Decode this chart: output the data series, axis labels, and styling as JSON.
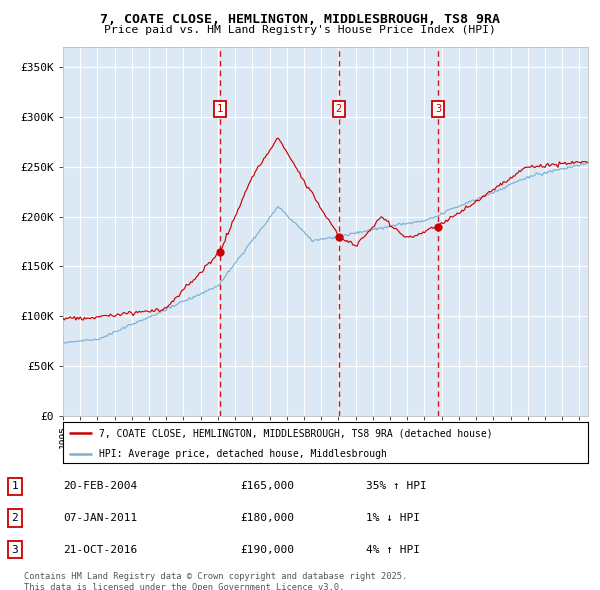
{
  "title_line1": "7, COATE CLOSE, HEMLINGTON, MIDDLESBROUGH, TS8 9RA",
  "title_line2": "Price paid vs. HM Land Registry's House Price Index (HPI)",
  "bg_color": "#dce9f5",
  "red_line_color": "#cc0000",
  "blue_line_color": "#7ab0d4",
  "grid_color": "#ffffff",
  "sale_line_color": "#cc0000",
  "sale_box_color": "#cc0000",
  "ylabel_values": [
    0,
    50000,
    100000,
    150000,
    200000,
    250000,
    300000,
    350000
  ],
  "ylabel_labels": [
    "£0",
    "£50K",
    "£100K",
    "£150K",
    "£200K",
    "£250K",
    "£300K",
    "£350K"
  ],
  "xlim_start": 1995.0,
  "xlim_end": 2025.5,
  "ylim_min": 0,
  "ylim_max": 370000,
  "sale1_date": 2004.13,
  "sale1_price": 165000,
  "sale1_label": "1",
  "sale2_date": 2011.02,
  "sale2_price": 180000,
  "sale2_label": "2",
  "sale3_date": 2016.8,
  "sale3_price": 190000,
  "sale3_label": "3",
  "legend_red": "7, COATE CLOSE, HEMLINGTON, MIDDLESBROUGH, TS8 9RA (detached house)",
  "legend_blue": "HPI: Average price, detached house, Middlesbrough",
  "table_row1": [
    "1",
    "20-FEB-2004",
    "£165,000",
    "35% ↑ HPI"
  ],
  "table_row2": [
    "2",
    "07-JAN-2011",
    "£180,000",
    "1% ↓ HPI"
  ],
  "table_row3": [
    "3",
    "21-OCT-2016",
    "£190,000",
    "4% ↑ HPI"
  ],
  "footer": "Contains HM Land Registry data © Crown copyright and database right 2025.\nThis data is licensed under the Open Government Licence v3.0."
}
